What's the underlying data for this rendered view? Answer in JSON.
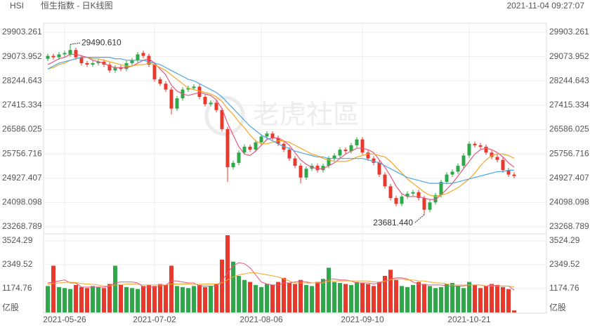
{
  "chart_data": {
    "type": "candlestick",
    "symbol": "HSI",
    "title": "恒生指数 - 日K线图",
    "timestamp": "2021-11-04 09:27:07",
    "watermark": "老虎社區",
    "grid": true,
    "up_color": "#2fa84a",
    "down_color": "#e83a2c",
    "categories": [
      null,
      null,
      null,
      "2021-05-26",
      null,
      null,
      null,
      null,
      null,
      null,
      null,
      null,
      null,
      null,
      null,
      null,
      null,
      null,
      null,
      "2021-07-02",
      null,
      null,
      null,
      null,
      null,
      null,
      null,
      null,
      null,
      null,
      null,
      null,
      null,
      null,
      null,
      null,
      null,
      null,
      "2021-08-06",
      null,
      null,
      null,
      null,
      null,
      null,
      null,
      null,
      null,
      null,
      null,
      null,
      null,
      null,
      null,
      null,
      null,
      "2021-09-10",
      null,
      null,
      null,
      null,
      null,
      null,
      null,
      null,
      null,
      null,
      null,
      null,
      null,
      null,
      null,
      null,
      null,
      null,
      "2021-10-21",
      null,
      null,
      null,
      null,
      null,
      null,
      null,
      null
    ],
    "open": [
      29000,
      29100,
      29050,
      29150,
      29150,
      29300,
      29050,
      28850,
      28800,
      28850,
      28900,
      28800,
      28600,
      28700,
      28650,
      28850,
      28950,
      29200,
      29100,
      28800,
      28300,
      28150,
      27950,
      27300,
      27650,
      27950,
      28000,
      28050,
      27700,
      27450,
      27500,
      27250,
      26600,
      25300,
      25450,
      25800,
      26000,
      25900,
      26150,
      26350,
      26450,
      26300,
      26100,
      25900,
      25600,
      25350,
      24950,
      25250,
      25350,
      25200,
      25350,
      25600,
      25700,
      25900,
      25850,
      26050,
      26250,
      25800,
      25600,
      25450,
      25050,
      24650,
      24250,
      24050,
      24300,
      24400,
      24450,
      24250,
      23850,
      24100,
      24350,
      24800,
      25050,
      25150,
      25350,
      25700,
      26100,
      26050,
      26000,
      25800,
      25650,
      25550,
      25200,
      25050
    ],
    "high": [
      29180,
      29180,
      29230,
      29280,
      29490.61,
      29380,
      29130,
      28930,
      28930,
      28980,
      28980,
      28880,
      28780,
      28780,
      28930,
      29030,
      29230,
      29280,
      29180,
      28880,
      28380,
      28230,
      28030,
      27730,
      28030,
      28080,
      28130,
      28130,
      27780,
      27580,
      27580,
      27330,
      26680,
      25530,
      25880,
      26080,
      26080,
      26230,
      26430,
      26530,
      26530,
      26380,
      26180,
      25980,
      25680,
      25430,
      25330,
      25430,
      25430,
      25430,
      25680,
      25780,
      25980,
      25980,
      26130,
      26330,
      26330,
      25880,
      25680,
      25530,
      25130,
      24730,
      24330,
      24380,
      24480,
      24530,
      24530,
      24330,
      24180,
      24430,
      24880,
      25130,
      25230,
      25430,
      25780,
      26180,
      26180,
      26130,
      26080,
      25880,
      25730,
      25630,
      25280,
      25130
    ],
    "low": [
      28920,
      28970,
      28970,
      29070,
      29070,
      28970,
      28770,
      28720,
      28720,
      28770,
      28720,
      28520,
      28520,
      28570,
      28570,
      28770,
      28870,
      29020,
      28720,
      28220,
      28070,
      27870,
      27100,
      27220,
      27570,
      27870,
      27920,
      27620,
      27370,
      27370,
      27170,
      26520,
      24800,
      25220,
      25370,
      25720,
      25820,
      25820,
      26070,
      26270,
      26220,
      26020,
      25820,
      25520,
      25270,
      24750,
      24870,
      25170,
      25120,
      25120,
      25270,
      25520,
      25620,
      25770,
      25770,
      25970,
      25720,
      25520,
      25370,
      24970,
      24570,
      24170,
      23970,
      23970,
      24220,
      24320,
      24170,
      23681.44,
      23770,
      24020,
      24270,
      24720,
      24970,
      25070,
      25270,
      25620,
      25970,
      25920,
      25720,
      25570,
      25470,
      25120,
      24970,
      24920
    ],
    "close": [
      29100,
      29050,
      29150,
      29200,
      29300,
      29050,
      28850,
      28800,
      28850,
      28900,
      28800,
      28600,
      28700,
      28650,
      28850,
      28950,
      29150,
      29100,
      28800,
      28300,
      28150,
      27950,
      27300,
      27650,
      27950,
      28000,
      28050,
      27700,
      27450,
      27500,
      27250,
      26600,
      25300,
      25450,
      25800,
      26000,
      25900,
      26150,
      26350,
      26450,
      26300,
      26100,
      25900,
      25600,
      25350,
      24950,
      25250,
      25350,
      25200,
      25350,
      25600,
      25700,
      25900,
      25850,
      26050,
      26250,
      25800,
      25600,
      25450,
      25050,
      24650,
      24250,
      24050,
      24300,
      24400,
      24450,
      24250,
      23850,
      24100,
      24350,
      24800,
      25050,
      25150,
      25350,
      25700,
      26100,
      26050,
      26000,
      25800,
      25650,
      25550,
      25200,
      25050,
      25000
    ],
    "ylim": [
      23268.789,
      29903.261
    ],
    "yticks": [
      23268.789,
      24098.098,
      24927.407,
      25756.716,
      26586.025,
      27415.334,
      28244.643,
      29073.952,
      29903.261
    ],
    "annotations": [
      "29490.610",
      "23681.440"
    ],
    "ma": [
      {
        "color": "#e6557f",
        "values": [
          28800,
          28900,
          29000,
          29050,
          29150,
          29150,
          29100,
          29050,
          28950,
          28900,
          28850,
          28750,
          28700,
          28700,
          28700,
          28750,
          28850,
          28950,
          29000,
          28850,
          28650,
          28450,
          28100,
          27900,
          27800,
          27750,
          27800,
          27850,
          27800,
          27750,
          27600,
          27300,
          26800,
          26400,
          26000,
          25750,
          25700,
          25850,
          26050,
          26250,
          26300,
          26300,
          26200,
          26050,
          25800,
          25550,
          25400,
          25300,
          25250,
          25250,
          25350,
          25450,
          25600,
          25750,
          25850,
          25950,
          25950,
          25900,
          25800,
          25550,
          25300,
          25000,
          24650,
          24400,
          24300,
          24300,
          24300,
          24250,
          24200,
          24200,
          24350,
          24550,
          24750,
          25000,
          25250,
          25500,
          25750,
          25900,
          25950,
          25900,
          25800,
          25650,
          25450,
          25300
        ]
      },
      {
        "color": "#f5a623",
        "values": [
          28650,
          28700,
          28800,
          28850,
          28950,
          29000,
          29050,
          29050,
          29000,
          29000,
          28950,
          28900,
          28850,
          28800,
          28750,
          28750,
          28800,
          28800,
          28850,
          28800,
          28700,
          28600,
          28450,
          28300,
          28150,
          28000,
          27950,
          27900,
          27850,
          27800,
          27700,
          27550,
          27300,
          27100,
          26850,
          26650,
          26400,
          26200,
          26100,
          26100,
          26150,
          26200,
          26200,
          26150,
          26050,
          25950,
          25850,
          25750,
          25700,
          25600,
          25550,
          25500,
          25500,
          25500,
          25550,
          25650,
          25700,
          25750,
          25750,
          25700,
          25650,
          25500,
          25300,
          25100,
          24900,
          24750,
          24600,
          24450,
          24350,
          24300,
          24350,
          24400,
          24500,
          24600,
          24750,
          24900,
          25100,
          25350,
          25550,
          25700,
          25750,
          25750,
          25700,
          25600
        ]
      },
      {
        "color": "#4da6e0",
        "values": [
          28650,
          28750,
          28850,
          28900,
          28950,
          29000,
          29050,
          29050,
          29050,
          29050,
          29050,
          29050,
          29000,
          29000,
          28950,
          28950,
          28950,
          28950,
          28900,
          28850,
          28800,
          28700,
          28600,
          28500,
          28400,
          28300,
          28250,
          28150,
          28050,
          27950,
          27850,
          27700,
          27500,
          27300,
          27100,
          26900,
          26700,
          26550,
          26400,
          26300,
          26200,
          26100,
          26000,
          25950,
          25850,
          25800,
          25750,
          25700,
          25650,
          25650,
          25600,
          25600,
          25600,
          25600,
          25600,
          25600,
          25600,
          25550,
          25500,
          25450,
          25350,
          25250,
          25150,
          25050,
          24950,
          24900,
          24850,
          24800,
          24750,
          24750,
          24750,
          24750,
          24750,
          24800,
          24850,
          24900,
          24950,
          25000,
          25050,
          25100,
          25150,
          25150,
          25200,
          25200
        ]
      }
    ],
    "volume": {
      "unit": "亿股",
      "ylim": [
        0,
        3524.29
      ],
      "yticks": [
        1174.76,
        2349.52,
        3524.29
      ],
      "values": [
        1300,
        2300,
        1250,
        1200,
        1150,
        1350,
        1250,
        1200,
        1300,
        1250,
        1200,
        1400,
        2300,
        1350,
        1250,
        1200,
        1150,
        1300,
        1350,
        1300,
        1400,
        1350,
        2300,
        1300,
        1250,
        1200,
        1300,
        1350,
        1250,
        1300,
        1400,
        2600,
        3800,
        2500,
        1800,
        1600,
        1500,
        1350,
        1250,
        1400,
        1350,
        1500,
        1700,
        1450,
        1400,
        1600,
        1350,
        1300,
        1500,
        1650,
        2200,
        1500,
        1450,
        1400,
        1350,
        1500,
        1450,
        1400,
        1300,
        1500,
        1800,
        2100,
        1600,
        1300,
        1250,
        1350,
        1500,
        1400,
        1300,
        1200,
        1250,
        1400,
        1450,
        1300,
        1200,
        1500,
        1350,
        1200,
        1300,
        1400,
        1350,
        1250,
        1150,
        100
      ],
      "ma": [
        {
          "color": "#e6557f",
          "values": [
            1450,
            1500,
            1550,
            1600,
            1450,
            1450,
            1250,
            1250,
            1250,
            1250,
            1250,
            1300,
            1450,
            1500,
            1500,
            1500,
            1450,
            1250,
            1250,
            1250,
            1300,
            1350,
            1550,
            1550,
            1500,
            1450,
            1450,
            1300,
            1300,
            1300,
            1300,
            1550,
            1950,
            2300,
            2450,
            2400,
            2200,
            1850,
            1500,
            1400,
            1350,
            1350,
            1450,
            1450,
            1500,
            1550,
            1500,
            1450,
            1450,
            1500,
            1650,
            1650,
            1600,
            1600,
            1550,
            1450,
            1450,
            1450,
            1400,
            1450,
            1500,
            1650,
            1700,
            1700,
            1650,
            1500,
            1400,
            1350,
            1350,
            1350,
            1350,
            1300,
            1300,
            1300,
            1300,
            1350,
            1350,
            1350,
            1300,
            1350,
            1300,
            1300,
            1300,
            1100
          ]
        },
        {
          "color": "#f5a623",
          "values": [
            1400,
            1420,
            1450,
            1480,
            1480,
            1470,
            1420,
            1400,
            1380,
            1350,
            1300,
            1300,
            1350,
            1370,
            1400,
            1400,
            1380,
            1350,
            1350,
            1350,
            1350,
            1350,
            1400,
            1400,
            1400,
            1400,
            1380,
            1380,
            1400,
            1400,
            1400,
            1450,
            1600,
            1750,
            1850,
            1900,
            1950,
            1950,
            1900,
            1850,
            1800,
            1750,
            1650,
            1550,
            1450,
            1450,
            1450,
            1450,
            1450,
            1450,
            1550,
            1550,
            1550,
            1550,
            1550,
            1550,
            1550,
            1550,
            1500,
            1500,
            1550,
            1600,
            1650,
            1650,
            1600,
            1600,
            1550,
            1550,
            1500,
            1450,
            1450,
            1400,
            1350,
            1350,
            1350,
            1350,
            1350,
            1350,
            1300,
            1300,
            1300,
            1300,
            1300,
            1250
          ]
        }
      ]
    }
  }
}
